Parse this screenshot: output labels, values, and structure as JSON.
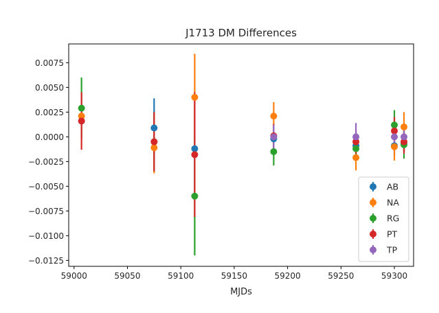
{
  "chart_data": {
    "type": "scatter",
    "subtype": "errorbar",
    "title": "J1713 DM Differences",
    "xlabel": "MJDs",
    "ylabel": "",
    "xlim": [
      58995,
      59318
    ],
    "ylim": [
      -0.0131,
      0.0094
    ],
    "xticks": [
      59000,
      59050,
      59100,
      59150,
      59200,
      59250,
      59300
    ],
    "xtick_labels": [
      "59000",
      "59050",
      "59100",
      "59150",
      "59200",
      "59250",
      "59300"
    ],
    "yticks": [
      -0.0125,
      -0.01,
      -0.0075,
      -0.005,
      -0.0025,
      0,
      0.0025,
      0.005,
      0.0075
    ],
    "ytick_labels": [
      "−0.0125",
      "−0.0100",
      "−0.0075",
      "−0.0050",
      "−0.0025",
      "0.0000",
      "0.0025",
      "0.0050",
      "0.0075"
    ],
    "grid": false,
    "legend_position": "lower right",
    "series": [
      {
        "name": "AB",
        "color": "#1f77b4",
        "points": [
          {
            "x": 59075,
            "y": 0.0009,
            "err": 0.003
          },
          {
            "x": 59113,
            "y": -0.0012,
            "err": 0.0052
          },
          {
            "x": 59187,
            "y": -0.0002,
            "err": 0.0014
          },
          {
            "x": 59264,
            "y": -0.0009,
            "err": 0.0012
          },
          {
            "x": 59300,
            "y": -0.0009,
            "err": 0.001
          },
          {
            "x": 59309,
            "y": -0.0006,
            "err": 0.0009
          }
        ]
      },
      {
        "name": "NA",
        "color": "#ff7f0e",
        "points": [
          {
            "x": 59007,
            "y": 0.0021,
            "err": 0.0015
          },
          {
            "x": 59075,
            "y": -0.0011,
            "err": 0.0026
          },
          {
            "x": 59113,
            "y": 0.004,
            "err": 0.0044
          },
          {
            "x": 59187,
            "y": 0.0021,
            "err": 0.0014
          },
          {
            "x": 59264,
            "y": -0.0021,
            "err": 0.0013
          },
          {
            "x": 59300,
            "y": -0.001,
            "err": 0.0014
          },
          {
            "x": 59309,
            "y": 0.001,
            "err": 0.0015
          }
        ]
      },
      {
        "name": "RG",
        "color": "#2ca02c",
        "points": [
          {
            "x": 59007,
            "y": 0.0029,
            "err": 0.0031
          },
          {
            "x": 59075,
            "y": -0.0005,
            "err": 0.003
          },
          {
            "x": 59113,
            "y": -0.006,
            "err": 0.006
          },
          {
            "x": 59187,
            "y": -0.0015,
            "err": 0.0014
          },
          {
            "x": 59264,
            "y": -0.0012,
            "err": 0.0011
          },
          {
            "x": 59300,
            "y": 0.0012,
            "err": 0.0015
          },
          {
            "x": 59309,
            "y": -0.0008,
            "err": 0.0014
          }
        ]
      },
      {
        "name": "PT",
        "color": "#d62728",
        "points": [
          {
            "x": 59007,
            "y": 0.0016,
            "err": 0.0029
          },
          {
            "x": 59075,
            "y": -0.0005,
            "err": 0.003
          },
          {
            "x": 59113,
            "y": -0.0018,
            "err": 0.0063
          },
          {
            "x": 59187,
            "y": 0.0001,
            "err": 0.0012
          },
          {
            "x": 59264,
            "y": -0.0005,
            "err": 0.0012
          },
          {
            "x": 59300,
            "y": 0.0006,
            "err": 0.0014
          },
          {
            "x": 59309,
            "y": -0.0005,
            "err": 0.0012
          }
        ]
      },
      {
        "name": "TP",
        "color": "#9467bd",
        "points": [
          {
            "x": 59187,
            "y": 0.0,
            "err": 0.0012
          },
          {
            "x": 59264,
            "y": 0.0,
            "err": 0.0014
          },
          {
            "x": 59300,
            "y": 0.0,
            "err": 0.0012
          },
          {
            "x": 59309,
            "y": 0.0,
            "err": 0.0011
          }
        ]
      }
    ]
  }
}
